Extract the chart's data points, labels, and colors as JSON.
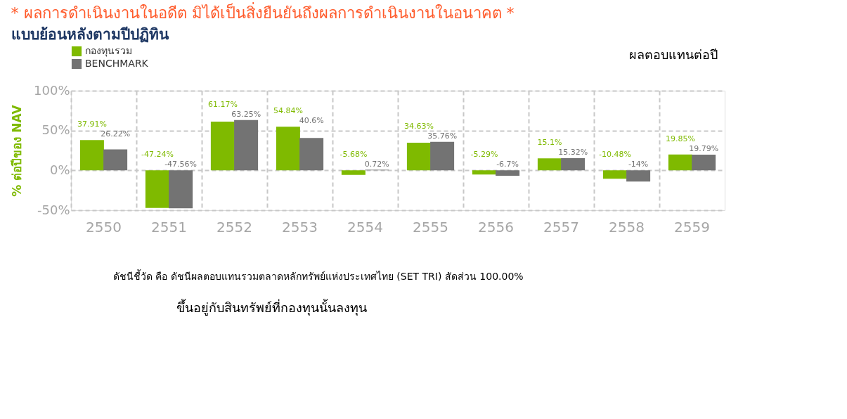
{
  "chart_data": {
    "type": "bar",
    "title": "* ผลการดำเนินงานในอดีต มิได้เป็นสิ่งยืนยันถึงผลการดำเนินงานในอนาคต *",
    "subtitle": "แบบย้อนหลังตามปีปฏิทิน",
    "ylabel": "% ต่อปีของ NAV",
    "categories": [
      "2550",
      "2551",
      "2552",
      "2553",
      "2554",
      "2555",
      "2556",
      "2557",
      "2558",
      "2559"
    ],
    "series": [
      {
        "name": "กองทุนรวม",
        "color": "#7fba00",
        "values": [
          37.91,
          -47.24,
          61.17,
          54.84,
          -5.68,
          34.63,
          -5.29,
          15.1,
          -10.48,
          19.85
        ],
        "value_labels": [
          "37.91%",
          "-47.24%",
          "61.17%",
          "54.84%",
          "-5.68%",
          "34.63%",
          "-5.29%",
          "15.1%",
          "-10.48%",
          "19.85%"
        ]
      },
      {
        "name": "BENCHMARK",
        "color": "#737373",
        "values": [
          26.22,
          -47.56,
          63.25,
          40.6,
          0.72,
          35.76,
          -6.7,
          15.32,
          -14,
          19.79
        ],
        "value_labels": [
          "26.22%",
          "-47.56%",
          "63.25%",
          "40.6%",
          "0.72%",
          "35.76%",
          "-6.7%",
          "15.32%",
          "-14%",
          "19.79%"
        ]
      }
    ],
    "ylim": [
      -50,
      100
    ],
    "yticks": [
      {
        "value": -50,
        "label": "-50%"
      },
      {
        "value": 0,
        "label": "0%"
      },
      {
        "value": 50,
        "label": "50%"
      },
      {
        "value": 100,
        "label": "100%"
      }
    ],
    "grid": true,
    "legend": "top left",
    "annotations": [
      "ผลตอบแทนต่อปี",
      "ดัชนีชี้วัด คือ ดัชนีผลตอบแทนรวมตลาดหลักทรัพย์แห่งประเทศไทย (SET TRI) สัดส่วน 100.00%",
      "ขึ้นอยู่กับสินทรัพย์ที่กองทุนนั้นลงทุน"
    ]
  }
}
